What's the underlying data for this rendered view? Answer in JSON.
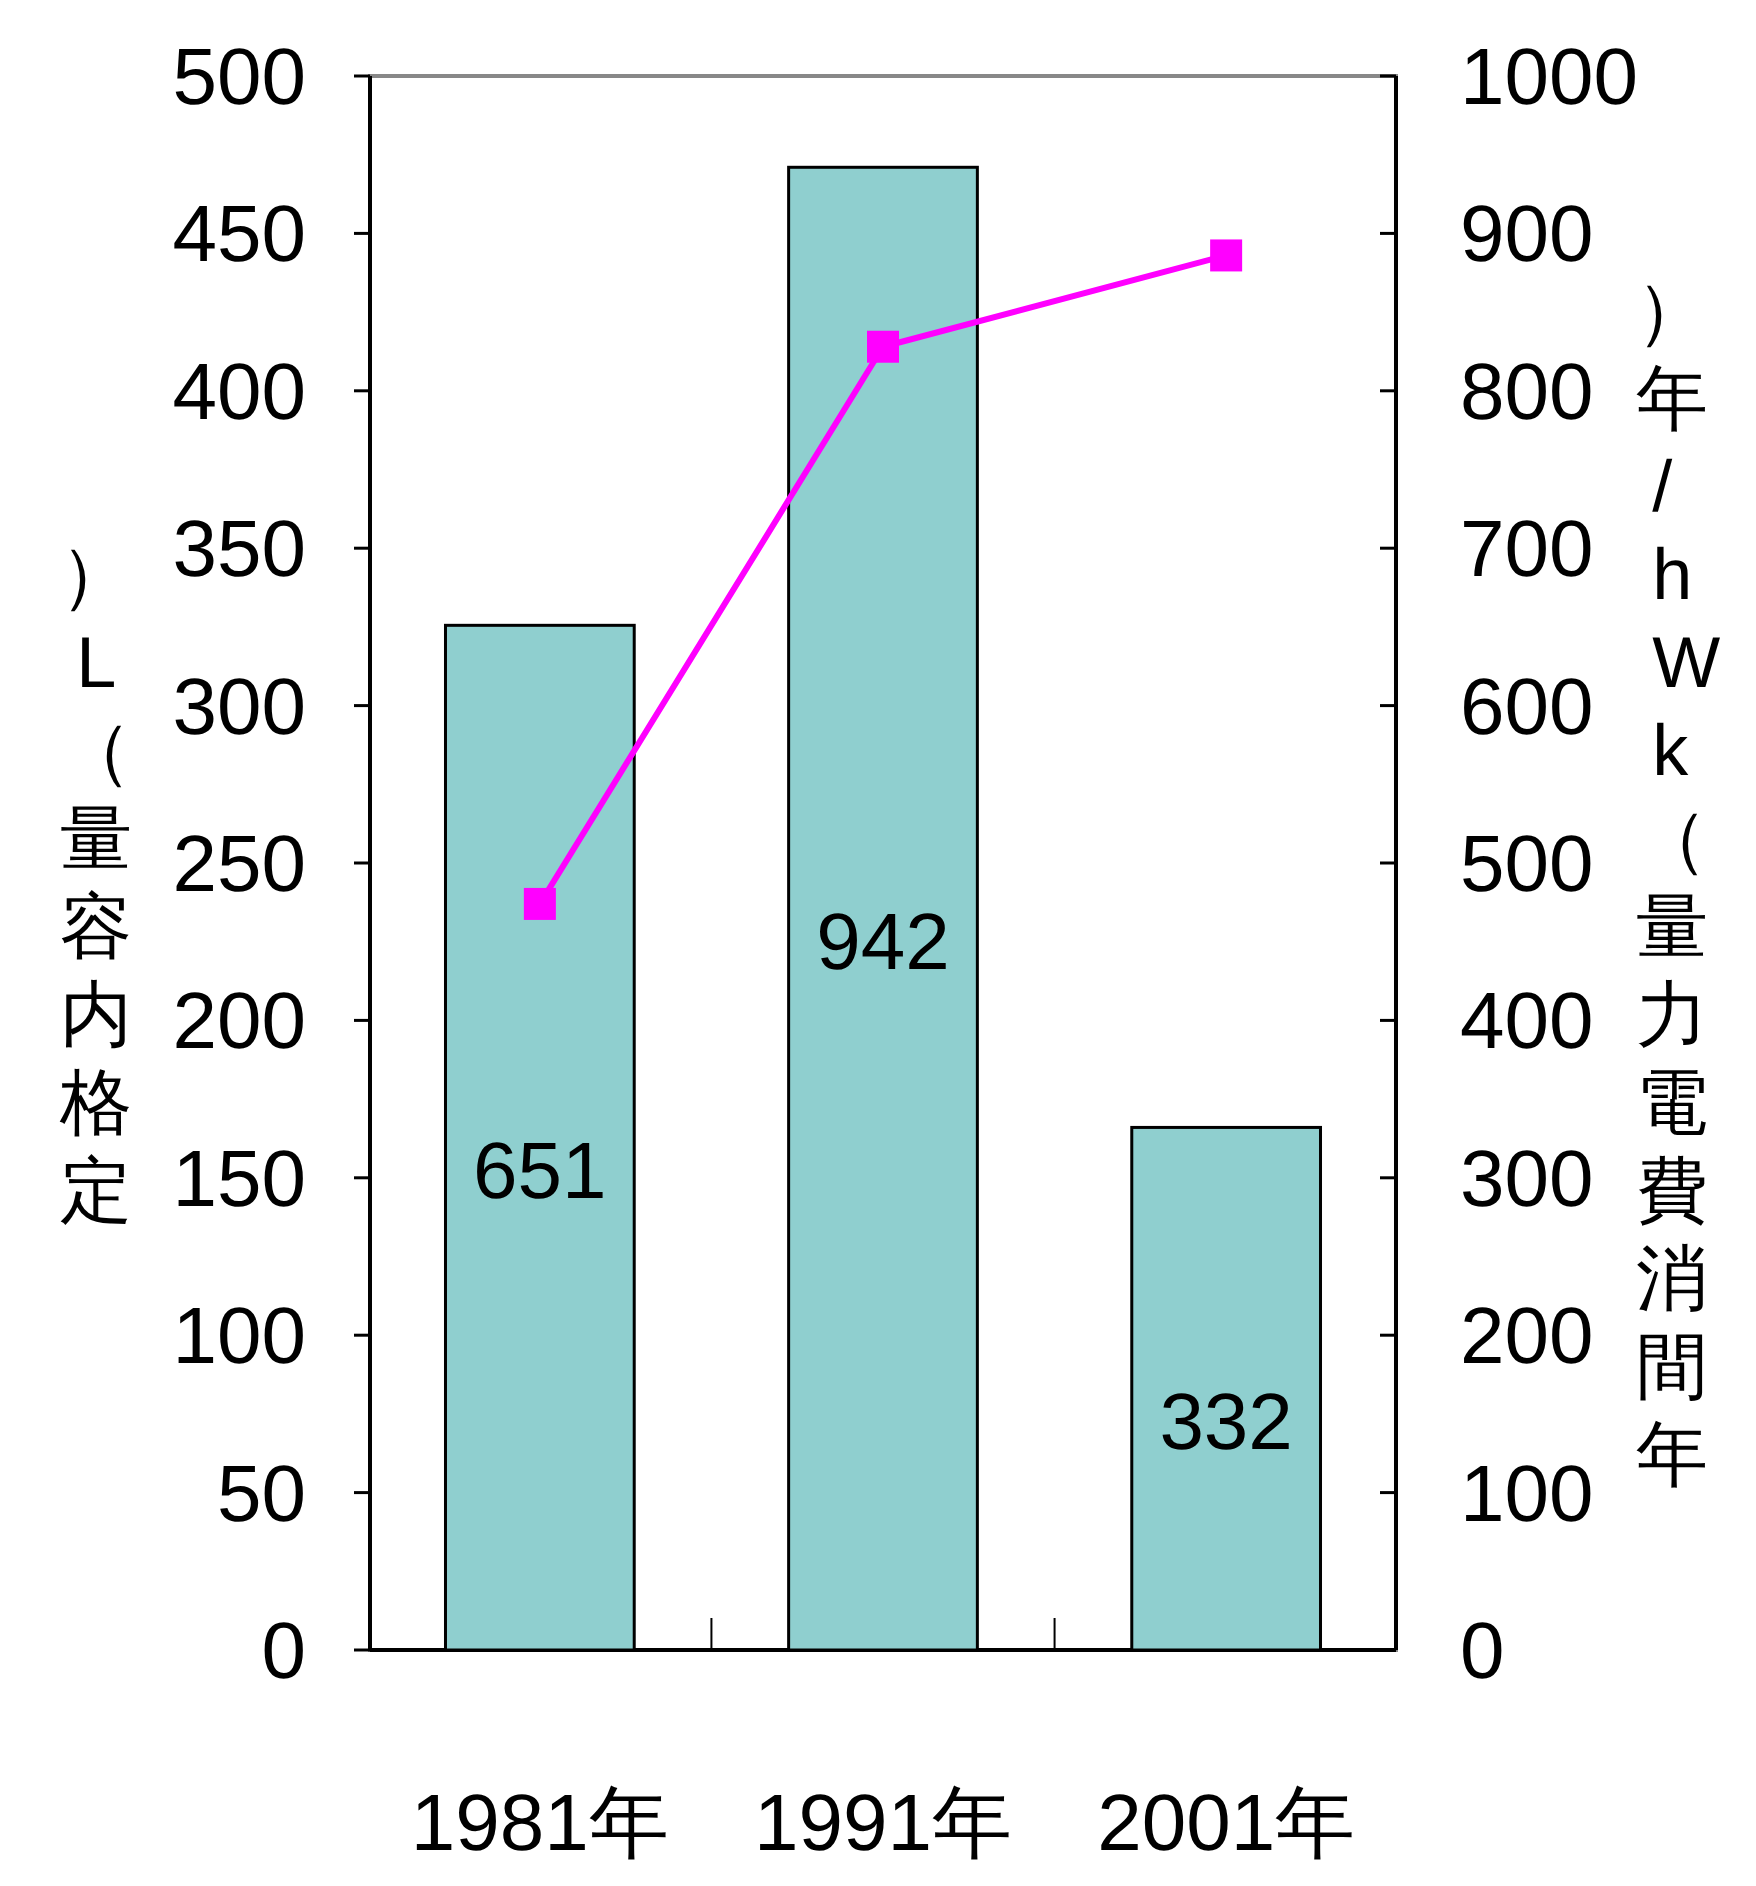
{
  "chart_data": {
    "type": "bar",
    "categories": [
      "1981年",
      "1991年",
      "2001年"
    ],
    "ylabel": "定格内容量（L）",
    "y2label": "年間消費電力量（kWh/年）",
    "series": [
      {
        "axis": "y2",
        "color": "#8fcfcf",
        "values": [
          651,
          942,
          332
        ],
        "value_labels": [
          "651",
          "942",
          "332"
        ]
      },
      {
        "type": "line",
        "axis": "y",
        "color": "#ff00ff",
        "values": [
          237,
          414,
          443
        ]
      }
    ],
    "ylim": [
      0,
      500
    ],
    "yticks": [
      0,
      50,
      100,
      150,
      200,
      250,
      300,
      350,
      400,
      450,
      500
    ],
    "y2lim": [
      0,
      1000
    ],
    "y2ticks": [
      0,
      100,
      200,
      300,
      400,
      500,
      600,
      700,
      800,
      900,
      1000
    ],
    "grid": false,
    "marker": "square",
    "line_style": "solid"
  }
}
